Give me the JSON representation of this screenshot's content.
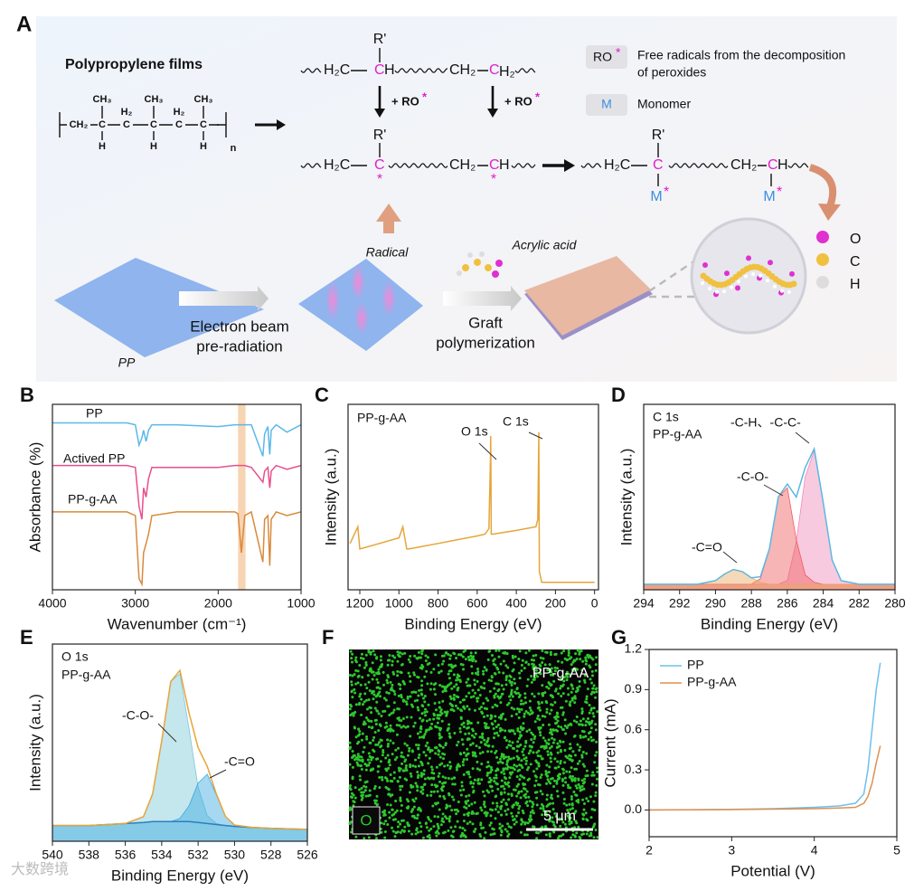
{
  "panel_a": {
    "label": "A",
    "title": "Polypropylene films",
    "pp_formula": [
      "CH₃",
      "CH₃",
      "CH₃",
      "H₂",
      "H₂",
      "CH₂",
      "C",
      "C",
      "C",
      "C",
      "C",
      "H",
      "H",
      "H",
      "n"
    ],
    "chain1": [
      "R'",
      "H₂C",
      "C",
      "H",
      "CH₂",
      "C",
      "H₂"
    ],
    "reagent": [
      "+ RO",
      "*",
      "+ RO",
      "*"
    ],
    "chain2": [
      "R'",
      "H₂C",
      "C",
      "*",
      "CH₂",
      "C",
      "H",
      "*"
    ],
    "chain3": [
      "R'",
      "H₂C",
      "C",
      "M",
      "*",
      "CH₂",
      "C",
      "H",
      "M",
      "*"
    ],
    "legend": [
      {
        "key": [
          "RO",
          "*"
        ],
        "text": [
          "Free radicals from the decomposition",
          "of peroxides"
        ]
      },
      {
        "key": [
          "M"
        ],
        "text": [
          "Monomer"
        ]
      }
    ],
    "process": [
      "PP",
      "Electron beam",
      "pre-radiation",
      "Radical",
      "Acrylic acid",
      "Graft",
      "polymerization"
    ],
    "atoms": [
      "O",
      "C",
      "H"
    ]
  },
  "panel_f": {
    "label": "F",
    "sample": "PP-g-AA",
    "element": "O",
    "scale": "5 μm"
  },
  "watermark": "大数跨境",
  "chart_data": [
    {
      "type": "line",
      "panel": "B",
      "xlabel": "Wavenumber (cm⁻¹)",
      "ylabel": "Absorbance (%)",
      "xlim": [
        4000,
        1000
      ],
      "xticks": [
        4000,
        3000,
        2000,
        1000
      ],
      "ylim": [
        0,
        100
      ],
      "highlight": [
        1760,
        1670
      ],
      "annotations": [
        "PP",
        "Actived PP",
        "PP-g-AA"
      ],
      "x": [
        4000,
        3500,
        3100,
        3000,
        2955,
        2920,
        2900,
        2870,
        2840,
        2800,
        2500,
        2000,
        1800,
        1760,
        1720,
        1680,
        1600,
        1460,
        1440,
        1400,
        1377,
        1360,
        1300,
        1170,
        1000
      ],
      "series": [
        {
          "name": "PP",
          "color": "#5bb8e8",
          "values": [
            90,
            90,
            90,
            89,
            78,
            82,
            86,
            80,
            86,
            89,
            89,
            88,
            89,
            89,
            89,
            89,
            89,
            72,
            84,
            88,
            73,
            86,
            89,
            85,
            89
          ]
        },
        {
          "name": "Actived PP",
          "color": "#e8508c",
          "values": [
            67,
            67,
            67,
            66,
            45,
            38,
            55,
            50,
            60,
            66,
            66,
            66,
            67,
            67,
            67,
            67,
            66,
            58,
            64,
            66,
            55,
            64,
            67,
            65,
            67
          ]
        },
        {
          "name": "PP-g-AA",
          "color": "#d98a3c",
          "values": [
            42,
            42,
            42,
            40,
            6,
            3,
            20,
            25,
            30,
            40,
            42,
            42,
            42,
            41,
            20,
            40,
            42,
            15,
            38,
            40,
            13,
            38,
            42,
            40,
            42
          ]
        }
      ]
    },
    {
      "type": "line",
      "panel": "C",
      "xlabel": "Binding Energy (eV)",
      "ylabel": "Intensity (a.u.)",
      "xlim": [
        1260,
        -20
      ],
      "xticks": [
        1200,
        1000,
        800,
        600,
        400,
        200,
        0
      ],
      "ylim": [
        0,
        100
      ],
      "annotations": [
        "PP-g-AA",
        "O 1s",
        "C 1s"
      ],
      "x": [
        1250,
        1210,
        1200,
        1100,
        1000,
        980,
        960,
        950,
        900,
        800,
        700,
        600,
        560,
        540,
        532,
        531,
        528,
        520,
        400,
        300,
        290,
        285,
        282,
        270,
        200,
        100,
        0
      ],
      "series": [
        {
          "name": "PP-g-AA",
          "color": "#e6a53a",
          "values": [
            25,
            34,
            22,
            25,
            28,
            34,
            22,
            22,
            23,
            25,
            27,
            29,
            30,
            33,
            70,
            83,
            30,
            30,
            32,
            34,
            38,
            85,
            10,
            4,
            4,
            4,
            4
          ]
        }
      ]
    },
    {
      "type": "line",
      "panel": "D",
      "xlabel": "Binding Energy (eV)",
      "ylabel": "Intensity (a.u.)",
      "xlim": [
        294,
        280
      ],
      "xticks": [
        294,
        292,
        290,
        288,
        286,
        284,
        282,
        280
      ],
      "ylim": [
        0,
        100
      ],
      "annotations": [
        "C 1s",
        "PP-g-AA",
        "-C-H、-C-C-",
        "-C-O-",
        "-C=O"
      ],
      "x": [
        294,
        293,
        292,
        291,
        290,
        289.5,
        289,
        288.5,
        288,
        287.5,
        287,
        286.5,
        286,
        285.5,
        285,
        284.5,
        284,
        283.5,
        283,
        282,
        281,
        280
      ],
      "series": [
        {
          "name": "-C-H、-C-C-",
          "color": "#f08ab8",
          "fill": true,
          "values": [
            3,
            3,
            3,
            3,
            3,
            3,
            3,
            3,
            3,
            3,
            3,
            3,
            5,
            26,
            61,
            75,
            47,
            16,
            5,
            3,
            3,
            3
          ]
        },
        {
          "name": "-C-O-",
          "color": "#f05a5a",
          "fill": true,
          "values": [
            3,
            3,
            3,
            3,
            3,
            3,
            3,
            3,
            3,
            6,
            22,
            50,
            55,
            27,
            8,
            4,
            3,
            3,
            3,
            3,
            3,
            3
          ]
        },
        {
          "name": "-C=O",
          "color": "#e8a860",
          "fill": true,
          "values": [
            3,
            3,
            3,
            3,
            5,
            8.5,
            11,
            9.8,
            6.5,
            4,
            3,
            3,
            3,
            3,
            3,
            3,
            3,
            3,
            3,
            3,
            3,
            3
          ]
        },
        {
          "name": "C 1s",
          "color": "#5bb8e0",
          "values": [
            3,
            3,
            3,
            3,
            5,
            8.5,
            11,
            9.8,
            6.5,
            7,
            22,
            50,
            57,
            50,
            66,
            76,
            47,
            16,
            5,
            3,
            3,
            3
          ]
        }
      ]
    },
    {
      "type": "line",
      "panel": "E",
      "xlabel": "Binding Energy (eV)",
      "ylabel": "Intensity (a.u.)",
      "xlim": [
        540,
        526
      ],
      "xticks": [
        540,
        538,
        536,
        534,
        532,
        530,
        528,
        526
      ],
      "ylim": [
        0,
        100
      ],
      "annotations": [
        "O 1s",
        "PP-g-AA",
        "-C-O-",
        "-C=O"
      ],
      "x": [
        540,
        538,
        536,
        535,
        534.5,
        534,
        533.5,
        533,
        532.5,
        532,
        531.5,
        531,
        530.5,
        530,
        529,
        528,
        526
      ],
      "series": [
        {
          "name": "-C-O-",
          "color": "#7cc8d8",
          "fill": true,
          "values": [
            8,
            8,
            9,
            12.5,
            24,
            51,
            81,
            85,
            57,
            27.5,
            13,
            9,
            8,
            7.5,
            7,
            6.5,
            6
          ]
        },
        {
          "name": "-C=O",
          "color": "#3aa8e0",
          "fill": true,
          "values": [
            8,
            8,
            9,
            9.5,
            10,
            10,
            10,
            11.6,
            18,
            29.5,
            34,
            23.5,
            12.6,
            8.2,
            7,
            6.5,
            6
          ]
        },
        {
          "name": "Background",
          "color": "#2a7fc0",
          "values": [
            8,
            8,
            9,
            9.5,
            10,
            10,
            10,
            10,
            10,
            9.5,
            9,
            8.5,
            8,
            7.5,
            7,
            6.5,
            6
          ]
        },
        {
          "name": "O 1s",
          "color": "#e6a53a",
          "values": [
            8,
            8,
            9,
            12.5,
            24,
            51,
            81,
            86.6,
            65,
            47.5,
            38,
            24,
            12.6,
            8.2,
            7,
            6.5,
            6
          ]
        }
      ]
    },
    {
      "type": "line",
      "panel": "G",
      "xlabel": "Potential (V)",
      "ylabel": "Current (mA)",
      "xlim": [
        2,
        5
      ],
      "xticks": [
        2,
        3,
        4,
        5
      ],
      "ylim": [
        -0.2,
        1.2
      ],
      "yticks": [
        {
          "value": 0,
          "label": "0.0"
        },
        0.3,
        0.6,
        0.9,
        1.2
      ],
      "legend": "upper left",
      "x": [
        2,
        2.5,
        3,
        3.5,
        4,
        4.3,
        4.5,
        4.6,
        4.65,
        4.7,
        4.75,
        4.8
      ],
      "series": [
        {
          "name": "PP",
          "color": "#6cc0ec",
          "values": [
            0,
            0.002,
            0.005,
            0.01,
            0.02,
            0.03,
            0.05,
            0.12,
            0.3,
            0.6,
            0.9,
            1.1
          ]
        },
        {
          "name": "PP-g-AA",
          "color": "#e09050",
          "values": [
            0,
            0.001,
            0.003,
            0.006,
            0.01,
            0.015,
            0.02,
            0.05,
            0.1,
            0.2,
            0.35,
            0.48
          ]
        }
      ]
    }
  ]
}
